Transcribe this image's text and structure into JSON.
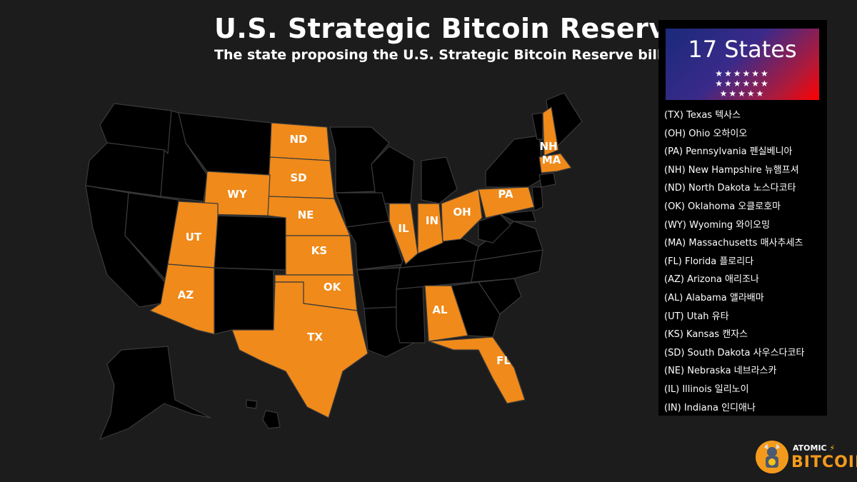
{
  "header": {
    "title": "U.S. Strategic Bitcoin Reserve",
    "subtitle": "The state proposing the U.S. Strategic Bitcoin Reserve bill"
  },
  "colors": {
    "background": "#1c1c1c",
    "state_default": "#000000",
    "state_highlight": "#f08a1a",
    "border": "#3a3a3a"
  },
  "map": {
    "highlighted_states": [
      "TX",
      "OH",
      "PA",
      "NH",
      "ND",
      "OK",
      "WY",
      "MA",
      "FL",
      "AZ",
      "AL",
      "UT",
      "KS",
      "SD",
      "NE",
      "IL",
      "IN"
    ],
    "labels": [
      "ND",
      "SD",
      "WY",
      "NE",
      "UT",
      "KS",
      "IL",
      "IN",
      "OH",
      "PA",
      "NH",
      "MA",
      "AZ",
      "OK",
      "TX",
      "AL",
      "FL"
    ]
  },
  "panel": {
    "banner_title": "17 States",
    "stars_rows": [
      "★★★★★★",
      "★★★★★★",
      "★★★★★"
    ],
    "states": [
      "(TX) Texas 텍사스",
      "(OH) Ohio 오하이오",
      "(PA) Pennsylvania 펜실베니아",
      "(NH) New Hampshire 뉴햄프셔",
      "(ND) North Dakota 노스다코타",
      "(OK) Oklahoma 오클로호마",
      "(WY) Wyoming 와이오밍",
      "(MA) Massachusetts 매사추세츠",
      "(FL) Florida 플로리다",
      "(AZ) Arizona 애리조나",
      "(AL) Alabama 앨라배마",
      "(UT) Utah 유타",
      "(KS) Kansas 캔자스",
      "(SD) South Dakota 사우스다코타",
      "(NE) Nebraska 네브라스카",
      "(IL) Illinois 일리노이",
      "(IN) Indiana 인디애나"
    ]
  },
  "logo": {
    "line1": "ATOMIC",
    "bolt": "⚡",
    "line2": "BITCOIN"
  }
}
